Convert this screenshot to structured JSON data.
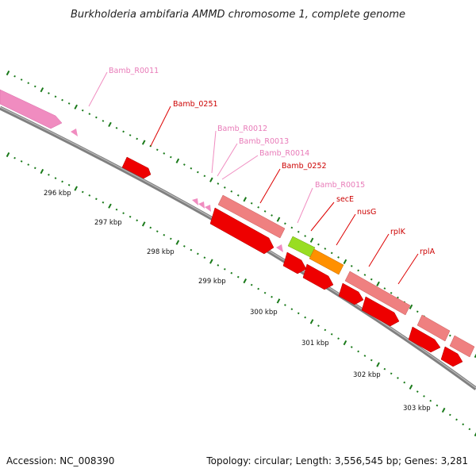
{
  "title": "Burkholderia ambifaria AMMD chromosome 1, complete genome",
  "footer": {
    "accession": "Accession: NC_008390",
    "summary": "Topology: circular; Length: 3,556,545 bp; Genes: 3,281"
  },
  "colors": {
    "rna": "#f08cc0",
    "rna_label": "#e87ab8",
    "gene_red": "#ee0000",
    "gene_label": "#cc0000",
    "gene_salmon": "#ef8080",
    "secE": "#99dd22",
    "nusG": "#ff9000",
    "tick": "#1a7a1a",
    "backbone": "#808080"
  },
  "scale_labels": [
    "296 kbp",
    "297 kbp",
    "298 kbp",
    "299 kbp",
    "300 kbp",
    "301 kbp",
    "302 kbp",
    "303 kbp"
  ],
  "labels": [
    {
      "id": "Bamb_R0011",
      "text": "Bamb_R0011",
      "kind": "rna"
    },
    {
      "id": "Bamb_0251",
      "text": "Bamb_0251",
      "kind": "gene"
    },
    {
      "id": "Bamb_R0012",
      "text": "Bamb_R0012",
      "kind": "rna"
    },
    {
      "id": "Bamb_R0013",
      "text": "Bamb_R0013",
      "kind": "rna"
    },
    {
      "id": "Bamb_R0014",
      "text": "Bamb_R0014",
      "kind": "rna"
    },
    {
      "id": "Bamb_0252",
      "text": "Bamb_0252",
      "kind": "gene"
    },
    {
      "id": "Bamb_R0015",
      "text": "Bamb_R0015",
      "kind": "rna"
    },
    {
      "id": "secE",
      "text": "secE",
      "kind": "gene"
    },
    {
      "id": "nusG",
      "text": "nusG",
      "kind": "gene"
    },
    {
      "id": "rplK",
      "text": "rplK",
      "kind": "gene"
    },
    {
      "id": "rplA",
      "text": "rplA",
      "kind": "gene"
    }
  ]
}
